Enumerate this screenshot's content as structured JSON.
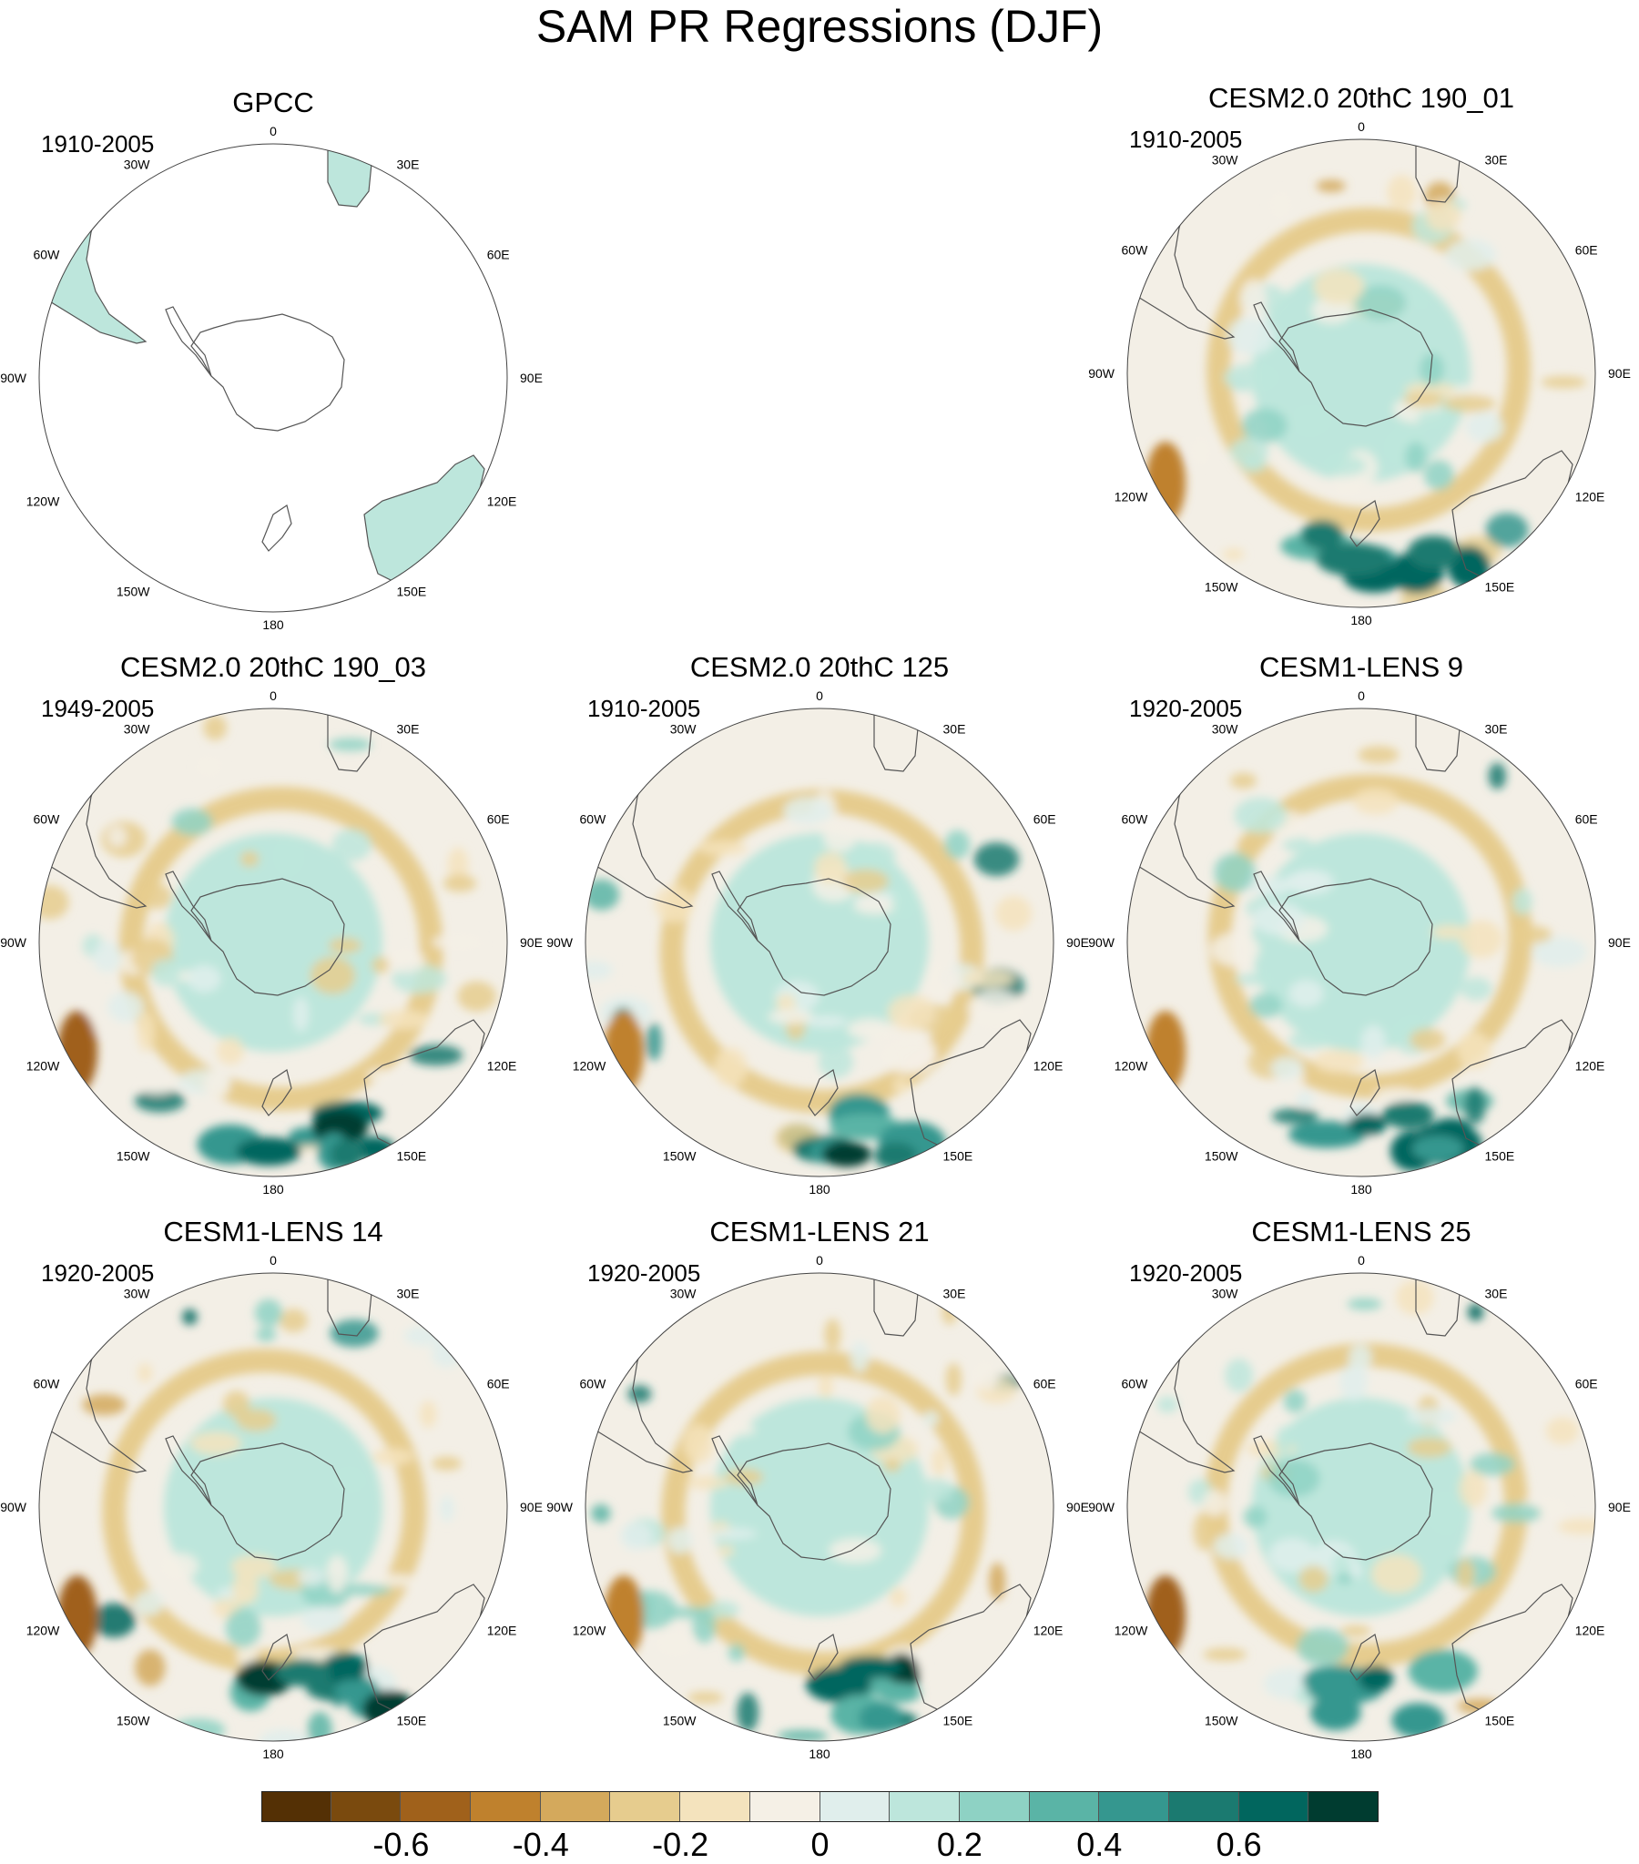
{
  "title": "SAM PR Regressions (DJF)",
  "panels": [
    {
      "id": "gpcc",
      "title": "GPCC",
      "period": "1910-2005",
      "observed": true,
      "seed": 3
    },
    {
      "id": "empty",
      "title": "",
      "period": "",
      "blank": true
    },
    {
      "id": "cesm2-190-01",
      "title": "CESM2.0 20thC 190_01",
      "period": "1910-2005",
      "seed": 11
    },
    {
      "id": "cesm2-190-03",
      "title": "CESM2.0 20thC 190_03",
      "period": "1949-2005",
      "seed": 23
    },
    {
      "id": "cesm2-125",
      "title": "CESM2.0 20thC 125",
      "period": "1910-2005",
      "seed": 37
    },
    {
      "id": "cesm1-lens-9",
      "title": "CESM1-LENS 9",
      "period": "1920-2005",
      "seed": 41
    },
    {
      "id": "cesm1-lens-14",
      "title": "CESM1-LENS 14",
      "period": "1920-2005",
      "seed": 53
    },
    {
      "id": "cesm1-lens-21",
      "title": "CESM1-LENS 21",
      "period": "1920-2005",
      "seed": 67
    },
    {
      "id": "cesm1-lens-25",
      "title": "CESM1-LENS 25",
      "period": "1920-2005",
      "seed": 79
    }
  ],
  "longitude_labels": [
    "0",
    "30E",
    "60E",
    "90E",
    "120E",
    "150E",
    "180",
    "150W",
    "120W",
    "90W",
    "60W",
    "30W"
  ],
  "colorbar": {
    "colors": [
      "#543005",
      "#7a4a0e",
      "#a0611b",
      "#bf812d",
      "#d4a95c",
      "#e6cc8e",
      "#f4e3bd",
      "#f5f0e6",
      "#e0eeec",
      "#bde6dc",
      "#8ed2c4",
      "#5ab4a6",
      "#35978f",
      "#1b7a70",
      "#01665e",
      "#003c30"
    ],
    "labels": [
      "-0.6",
      "-0.4",
      "-0.2",
      "0",
      "0.2",
      "0.4",
      "0.6"
    ],
    "label_values": [
      -0.6,
      -0.4,
      -0.2,
      0,
      0.2,
      0.4,
      0.6
    ],
    "min": -0.8,
    "max": 0.8
  }
}
